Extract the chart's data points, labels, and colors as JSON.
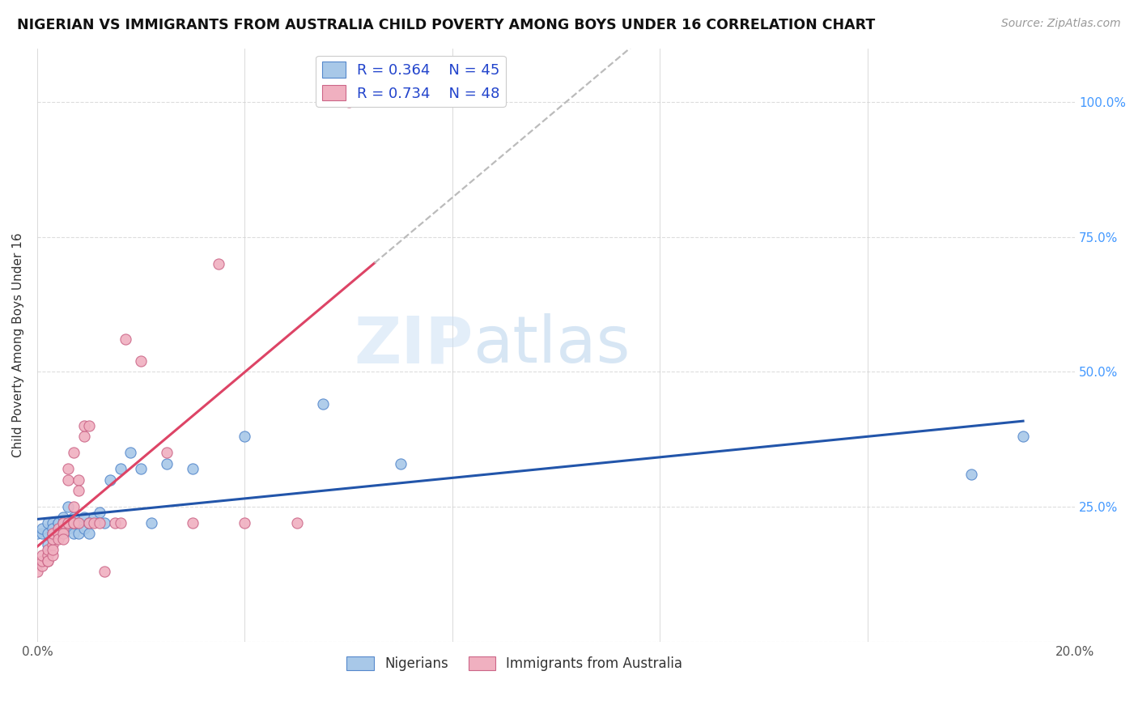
{
  "title": "NIGERIAN VS IMMIGRANTS FROM AUSTRALIA CHILD POVERTY AMONG BOYS UNDER 16 CORRELATION CHART",
  "source": "Source: ZipAtlas.com",
  "ylabel": "Child Poverty Among Boys Under 16",
  "legend_bottom": [
    "Nigerians",
    "Immigrants from Australia"
  ],
  "watermark_zip": "ZIP",
  "watermark_atlas": "atlas",
  "nigerians": {
    "R": 0.364,
    "N": 45,
    "color": "#a8c8e8",
    "edge_color": "#5588cc",
    "line_color": "#2255aa",
    "x": [
      0.0,
      0.001,
      0.001,
      0.002,
      0.002,
      0.002,
      0.003,
      0.003,
      0.003,
      0.003,
      0.004,
      0.004,
      0.004,
      0.004,
      0.005,
      0.005,
      0.005,
      0.005,
      0.006,
      0.006,
      0.006,
      0.007,
      0.007,
      0.007,
      0.008,
      0.008,
      0.009,
      0.009,
      0.01,
      0.01,
      0.011,
      0.012,
      0.013,
      0.014,
      0.016,
      0.018,
      0.02,
      0.022,
      0.025,
      0.03,
      0.04,
      0.055,
      0.07,
      0.18,
      0.19
    ],
    "y": [
      20.0,
      20.0,
      21.0,
      20.0,
      22.0,
      18.0,
      22.0,
      20.0,
      21.0,
      19.0,
      22.0,
      21.0,
      20.0,
      22.0,
      23.0,
      21.0,
      20.0,
      22.0,
      25.0,
      21.0,
      22.0,
      23.0,
      20.0,
      22.0,
      22.0,
      20.0,
      23.0,
      21.0,
      22.0,
      20.0,
      23.0,
      24.0,
      22.0,
      30.0,
      32.0,
      35.0,
      32.0,
      22.0,
      33.0,
      32.0,
      38.0,
      44.0,
      33.0,
      31.0,
      38.0
    ]
  },
  "immigrants": {
    "R": 0.734,
    "N": 48,
    "color": "#f0b0c0",
    "edge_color": "#cc6688",
    "line_color": "#dd4466",
    "x": [
      0.0,
      0.001,
      0.001,
      0.001,
      0.002,
      0.002,
      0.002,
      0.002,
      0.003,
      0.003,
      0.003,
      0.003,
      0.003,
      0.004,
      0.004,
      0.004,
      0.004,
      0.005,
      0.005,
      0.005,
      0.005,
      0.006,
      0.006,
      0.006,
      0.007,
      0.007,
      0.007,
      0.007,
      0.008,
      0.008,
      0.008,
      0.009,
      0.009,
      0.01,
      0.01,
      0.011,
      0.012,
      0.013,
      0.015,
      0.016,
      0.017,
      0.02,
      0.025,
      0.03,
      0.035,
      0.04,
      0.05,
      0.06
    ],
    "y": [
      13.0,
      14.0,
      15.0,
      16.0,
      15.0,
      16.0,
      17.0,
      15.0,
      16.0,
      18.0,
      17.0,
      19.0,
      20.0,
      20.0,
      21.0,
      20.0,
      19.0,
      21.0,
      22.0,
      20.0,
      19.0,
      22.0,
      30.0,
      32.0,
      22.0,
      25.0,
      35.0,
      22.0,
      30.0,
      22.0,
      28.0,
      38.0,
      40.0,
      22.0,
      40.0,
      22.0,
      22.0,
      13.0,
      22.0,
      22.0,
      56.0,
      52.0,
      35.0,
      22.0,
      70.0,
      22.0,
      22.0,
      100.0
    ]
  },
  "xlim": [
    0.0,
    0.2
  ],
  "ylim": [
    0.0,
    110.0
  ],
  "xtick_positions": [
    0.0,
    0.04,
    0.08,
    0.12,
    0.16,
    0.2
  ],
  "xtick_labels": [
    "0.0%",
    "",
    "",
    "",
    "",
    "20.0%"
  ],
  "ytick_positions": [
    0.0,
    25.0,
    50.0,
    75.0,
    100.0
  ],
  "ytick_labels_right": [
    "",
    "25.0%",
    "50.0%",
    "75.0%",
    "100.0%"
  ],
  "background_color": "#ffffff",
  "grid_color": "#dddddd",
  "dash_color": "#bbbbbb"
}
